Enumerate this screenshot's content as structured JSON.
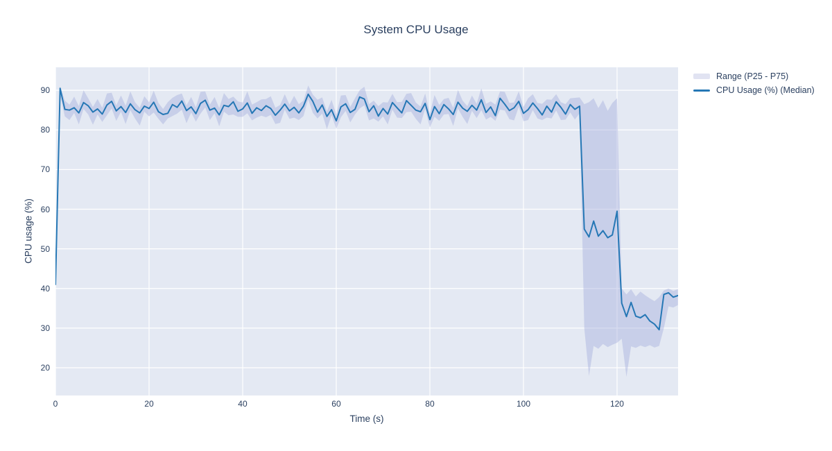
{
  "title": {
    "text": "System CPU Usage"
  },
  "axes": {
    "xlabel": "Time (s)",
    "ylabel": "CPU usage (%)"
  },
  "legend": {
    "position": "top-right-outside",
    "items": [
      {
        "label": "Range (P25 - P75)",
        "swatch": "band"
      },
      {
        "label": "CPU Usage (%) (Median)",
        "swatch": "line"
      }
    ]
  },
  "colors": {
    "text": "#2a3f5f",
    "line": "#2577b5",
    "band_fill": "rgba(163,172,220,0.42)",
    "band_legend": "#e1e3f2",
    "plot_bg": "#e4e9f3",
    "grid": "#ffffff",
    "paper_bg": "#ffffff"
  },
  "chart_data": {
    "type": "line",
    "title": "System CPU Usage",
    "xlabel": "Time (s)",
    "ylabel": "CPU usage (%)",
    "xlim": [
      0,
      133.04
    ],
    "ylim": [
      13.0,
      95.8
    ],
    "xticks": [
      0,
      20,
      40,
      60,
      80,
      100,
      120
    ],
    "yticks": [
      20,
      30,
      40,
      50,
      60,
      70,
      80,
      90
    ],
    "grid": true,
    "legend_position": "outside-right-top",
    "series": [
      {
        "name": "Range (P25 - P75)",
        "type": "band",
        "x": [
          0,
          1,
          2,
          3,
          4,
          5,
          6,
          7,
          8,
          9,
          10,
          11,
          12,
          13,
          14,
          15,
          16,
          17,
          18,
          19,
          20,
          21,
          22,
          23,
          24,
          25,
          26,
          27,
          28,
          29,
          30,
          31,
          32,
          33,
          34,
          35,
          36,
          37,
          38,
          39,
          40,
          41,
          42,
          43,
          44,
          45,
          46,
          47,
          48,
          49,
          50,
          51,
          52,
          53,
          54,
          55,
          56,
          57,
          58,
          59,
          60,
          61,
          62,
          63,
          64,
          65,
          66,
          67,
          68,
          69,
          70,
          71,
          72,
          73,
          74,
          75,
          76,
          77,
          78,
          79,
          80,
          81,
          82,
          83,
          84,
          85,
          86,
          87,
          88,
          89,
          90,
          91,
          92,
          93,
          94,
          95,
          96,
          97,
          98,
          99,
          100,
          101,
          102,
          103,
          104,
          105,
          106,
          107,
          108,
          109,
          110,
          111,
          112,
          113,
          114,
          115,
          116,
          117,
          118,
          119,
          120,
          121,
          122,
          123,
          124,
          125,
          126,
          127,
          128,
          129,
          130,
          131,
          132,
          133
        ],
        "p25": [
          40.6,
          88.8,
          83.4,
          82.5,
          84.3,
          81.4,
          85.3,
          83.9,
          81.3,
          83.9,
          82.0,
          83.7,
          85.4,
          82.3,
          84.6,
          81.5,
          85.0,
          82.9,
          81.1,
          84.6,
          83.4,
          84.4,
          82.8,
          81.4,
          82.9,
          83.5,
          84.1,
          85.1,
          81.7,
          84.4,
          82.1,
          84.1,
          85.7,
          82.5,
          84.2,
          80.9,
          84.6,
          83.7,
          83.9,
          83.3,
          83.3,
          84.2,
          82.4,
          83.1,
          83.6,
          83.2,
          83.8,
          81.5,
          81.8,
          85.1,
          82.8,
          83.1,
          82.5,
          83.5,
          87.7,
          84.3,
          82.9,
          84.1,
          80.2,
          83.7,
          80.3,
          83.2,
          84.8,
          81.9,
          83.9,
          85.4,
          86.2,
          82.4,
          82.9,
          82.1,
          83.4,
          81.4,
          85.1,
          83.1,
          83.0,
          84.5,
          84.6,
          82.8,
          81.4,
          85.3,
          80.6,
          83.3,
          82.3,
          83.9,
          84.0,
          81.0,
          85.4,
          83.3,
          81.5,
          84.8,
          83.0,
          85.0,
          82.6,
          83.3,
          82.3,
          85.1,
          84.9,
          82.7,
          82.4,
          85.8,
          82.2,
          82.5,
          85.0,
          82.9,
          82.5,
          83.1,
          82.9,
          84.9,
          82.5,
          82.6,
          84.4,
          82.6,
          84.2,
          30.0,
          17.9,
          25.5,
          24.8,
          26.0,
          25.2,
          25.8,
          26.3,
          27.3,
          17.7,
          25.4,
          25.0,
          25.6,
          25.2,
          25.7,
          25.1,
          25.5,
          30.0,
          35.5,
          35.2,
          35.8
        ],
        "p75": [
          41.4,
          91.0,
          87.4,
          86.4,
          88.4,
          86.0,
          90.0,
          88.0,
          85.8,
          87.8,
          85.6,
          89.2,
          89.4,
          86.2,
          88.7,
          86.1,
          89.7,
          87.0,
          85.6,
          88.5,
          87.0,
          89.9,
          86.8,
          85.3,
          87.0,
          88.1,
          88.8,
          89.2,
          86.2,
          88.3,
          85.7,
          89.6,
          89.7,
          86.4,
          88.3,
          85.5,
          89.3,
          87.8,
          88.4,
          87.2,
          86.9,
          89.7,
          86.4,
          87.0,
          87.7,
          87.8,
          88.5,
          85.6,
          86.3,
          89.0,
          86.4,
          88.6,
          86.5,
          87.4,
          91.2,
          88.9,
          87.6,
          88.2,
          84.7,
          87.6,
          83.9,
          88.7,
          88.8,
          85.8,
          88.0,
          90.0,
          90.9,
          86.5,
          87.4,
          86.0,
          87.0,
          86.9,
          89.1,
          87.0,
          87.1,
          89.1,
          89.3,
          86.9,
          85.9,
          89.2,
          84.2,
          88.8,
          86.3,
          87.8,
          88.1,
          85.6,
          90.1,
          87.4,
          86.0,
          88.7,
          86.6,
          90.5,
          86.6,
          87.2,
          86.4,
          89.7,
          89.6,
          86.8,
          86.9,
          89.7,
          85.8,
          88.0,
          89.0,
          86.8,
          86.6,
          87.7,
          87.6,
          89.0,
          87.0,
          86.5,
          88.0,
          88.1,
          88.2,
          86.5,
          87.0,
          88.0,
          85.5,
          87.5,
          84.8,
          86.8,
          88.0,
          40.0,
          38.5,
          39.8,
          38.0,
          39.2,
          38.3,
          37.5,
          36.8,
          37.8,
          39.5,
          40.0,
          39.4,
          39.8
        ]
      },
      {
        "name": "CPU Usage (%) (Median)",
        "type": "line",
        "x": [
          0,
          1,
          2,
          3,
          4,
          5,
          6,
          7,
          8,
          9,
          10,
          11,
          12,
          13,
          14,
          15,
          16,
          17,
          18,
          19,
          20,
          21,
          22,
          23,
          24,
          25,
          26,
          27,
          28,
          29,
          30,
          31,
          32,
          33,
          34,
          35,
          36,
          37,
          38,
          39,
          40,
          41,
          42,
          43,
          44,
          45,
          46,
          47,
          48,
          49,
          50,
          51,
          52,
          53,
          54,
          55,
          56,
          57,
          58,
          59,
          60,
          61,
          62,
          63,
          64,
          65,
          66,
          67,
          68,
          69,
          70,
          71,
          72,
          73,
          74,
          75,
          76,
          77,
          78,
          79,
          80,
          81,
          82,
          83,
          84,
          85,
          86,
          87,
          88,
          89,
          90,
          91,
          92,
          93,
          94,
          95,
          96,
          97,
          98,
          99,
          100,
          101,
          102,
          103,
          104,
          105,
          106,
          107,
          108,
          109,
          110,
          111,
          112,
          113,
          114,
          115,
          116,
          117,
          118,
          119,
          120,
          121,
          122,
          123,
          124,
          125,
          126,
          127,
          128,
          129,
          130,
          131,
          132,
          133
        ],
        "y": [
          41.0,
          90.5,
          85.2,
          85.0,
          85.6,
          84.3,
          86.9,
          86.1,
          84.5,
          85.3,
          84.0,
          86.3,
          87.2,
          84.8,
          85.9,
          84.4,
          86.6,
          85.1,
          84.3,
          86.0,
          85.4,
          87.0,
          84.6,
          83.9,
          84.2,
          86.4,
          85.7,
          87.3,
          84.9,
          85.8,
          84.1,
          86.7,
          87.5,
          85.0,
          85.5,
          83.8,
          86.2,
          85.9,
          87.1,
          84.7,
          85.3,
          86.8,
          84.2,
          85.6,
          84.9,
          86.1,
          85.4,
          83.7,
          85.0,
          86.5,
          84.8,
          85.7,
          84.3,
          86.0,
          89.0,
          87.2,
          84.5,
          86.3,
          83.4,
          85.1,
          82.3,
          85.8,
          86.6,
          84.4,
          85.2,
          88.3,
          87.8,
          84.6,
          86.1,
          83.5,
          85.4,
          84.0,
          86.9,
          85.6,
          84.3,
          87.4,
          86.2,
          85.0,
          84.6,
          86.7,
          82.6,
          85.9,
          84.1,
          86.4,
          85.3,
          83.9,
          87.0,
          85.5,
          84.7,
          86.2,
          85.0,
          87.6,
          84.4,
          85.8,
          83.6,
          88.0,
          86.5,
          84.9,
          85.6,
          87.2,
          84.2,
          85.1,
          86.8,
          85.4,
          83.8,
          86.0,
          84.5,
          87.1,
          85.7,
          84.0,
          86.4,
          85.2,
          86.0,
          55.0,
          53.0,
          57.0,
          53.2,
          54.6,
          52.8,
          53.5,
          59.5,
          36.3,
          32.9,
          36.5,
          33.0,
          32.6,
          33.4,
          31.8,
          31.0,
          29.6,
          38.5,
          38.9,
          37.8,
          38.2
        ]
      }
    ]
  }
}
